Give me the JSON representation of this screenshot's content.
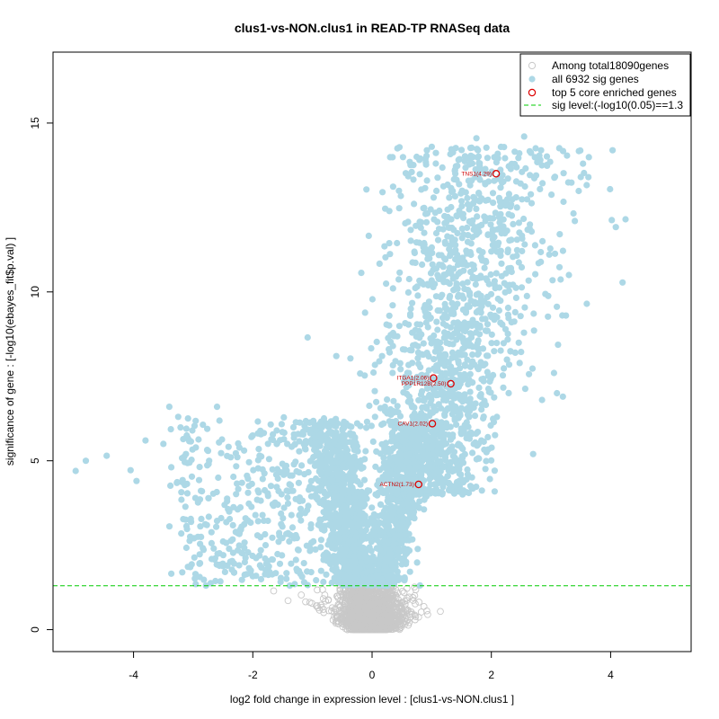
{
  "chart_data": {
    "type": "scatter",
    "title": "clus1-vs-NON.clus1 in READ-TP RNASeq data",
    "xlabel": "log2 fold change in expression level : [clus1-vs-NON.clus1 ]",
    "ylabel": "significance of gene : [-log10(ebayes_fit$p.val) ]",
    "xlim": [
      -5.35,
      5.35
    ],
    "ylim": [
      -0.65,
      17.1
    ],
    "xticks": [
      -4,
      -2,
      0,
      2,
      4
    ],
    "yticks": [
      0,
      5,
      10,
      15
    ],
    "threshold": 1.3,
    "legend": {
      "position": "top-right",
      "entries": [
        "Among total18090genes",
        "all 6932 sig genes",
        "top 5 core enriched genes",
        "sig level:(-log10(0.05)==1.3"
      ]
    },
    "colors": {
      "nonsig": "#c8c8c8",
      "sig": "#add8e6",
      "core": "#dd0000",
      "threshold": "#00cc00"
    },
    "core_genes": [
      {
        "label": "TNS1(4.29)",
        "x": 2.08,
        "y": 13.5
      },
      {
        "label": "ITGA1(2.06)",
        "x": 1.03,
        "y": 7.45
      },
      {
        "label": "PPP1R12B(2.50)",
        "x": 1.32,
        "y": 7.28
      },
      {
        "label": "CAV1(2.02)",
        "x": 1.01,
        "y": 6.1
      },
      {
        "label": "ACTN2(1.73)",
        "x": 0.78,
        "y": 4.3
      }
    ],
    "highlight_sig": [
      {
        "x": -4.97,
        "y": 4.7
      },
      {
        "x": -4.8,
        "y": 5.0
      },
      {
        "x": -4.45,
        "y": 5.15
      },
      {
        "x": -4.05,
        "y": 4.72
      },
      {
        "x": -3.95,
        "y": 4.4
      },
      {
        "x": -3.8,
        "y": 5.6
      },
      {
        "x": -3.5,
        "y": 5.5
      },
      {
        "x": -3.4,
        "y": 6.6
      },
      {
        "x": -3.25,
        "y": 6.3
      },
      {
        "x": -3.05,
        "y": 2.75
      },
      {
        "x": -2.6,
        "y": 6.6
      },
      {
        "x": -1.08,
        "y": 8.65
      },
      {
        "x": -0.6,
        "y": 8.1
      },
      {
        "x": 1.75,
        "y": 14.55
      },
      {
        "x": 2.55,
        "y": 14.6
      },
      {
        "x": 3.5,
        "y": 13.4
      },
      {
        "x": 3.4,
        "y": 12.1
      },
      {
        "x": 4.25,
        "y": 12.15
      },
      {
        "x": 4.2,
        "y": 10.28
      },
      {
        "x": 3.6,
        "y": 9.65
      },
      {
        "x": 3.25,
        "y": 9.3
      },
      {
        "x": 3.3,
        "y": 10.5
      },
      {
        "x": 3.1,
        "y": 7.0
      },
      {
        "x": 3.2,
        "y": 6.9
      },
      {
        "x": 3.05,
        "y": 7.6
      },
      {
        "x": 2.85,
        "y": 6.8
      },
      {
        "x": 1.73,
        "y": 13.4
      },
      {
        "x": 0.85,
        "y": 11.4
      },
      {
        "x": 2.4,
        "y": 8.2
      },
      {
        "x": 2.7,
        "y": 5.2
      }
    ]
  }
}
